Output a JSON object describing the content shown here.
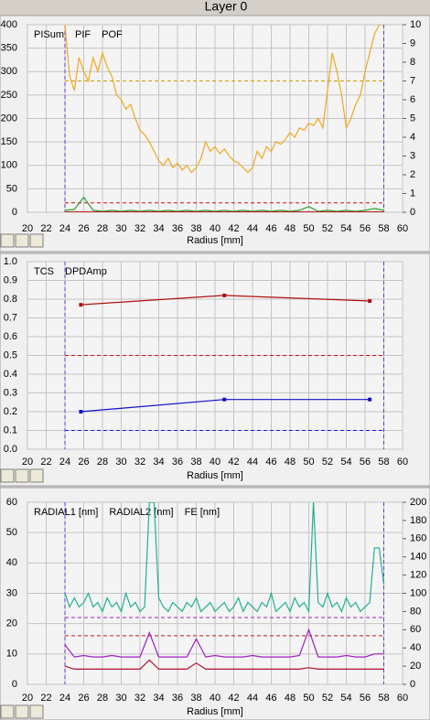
{
  "header": {
    "title": "Layer 0"
  },
  "chart_data": [
    {
      "type": "line",
      "xlabel": "Radius [mm]",
      "grid": true,
      "xlim": [
        20,
        60
      ],
      "xticks": [
        20,
        22,
        24,
        26,
        28,
        30,
        32,
        34,
        36,
        38,
        40,
        42,
        44,
        46,
        48,
        50,
        52,
        54,
        56,
        58,
        60
      ],
      "ylim": [
        0,
        400
      ],
      "yticks": [
        0,
        50,
        100,
        150,
        200,
        250,
        300,
        350,
        400
      ],
      "y2lim": [
        0,
        10
      ],
      "y2ticks": [
        0,
        1,
        2,
        3,
        4,
        5,
        6,
        7,
        8,
        9,
        10
      ],
      "xmarkers": [
        24,
        58
      ],
      "xmarker_color": "#5a3ce0",
      "reference_lines": [
        {
          "value": 280,
          "color": "#c8a000",
          "axis": "y"
        },
        {
          "value": 20,
          "color": "#d01010",
          "axis": "y"
        }
      ],
      "series": [
        {
          "name": "PISum",
          "color": "#f0a820",
          "axis": "y",
          "x": [
            24,
            24.5,
            25,
            25.5,
            26,
            26.5,
            27,
            27.5,
            28,
            28.5,
            29,
            29.5,
            30,
            30.5,
            31,
            31.5,
            32,
            32.5,
            33,
            33.5,
            34,
            34.5,
            35,
            35.5,
            36,
            36.5,
            37,
            37.5,
            38,
            38.5,
            39,
            39.5,
            40,
            40.5,
            41,
            41.5,
            42,
            42.5,
            43,
            43.5,
            44,
            44.5,
            45,
            45.5,
            46,
            46.5,
            47,
            47.5,
            48,
            48.5,
            49,
            49.5,
            50,
            50.5,
            51,
            51.5,
            52,
            52.5,
            53,
            53.5,
            54,
            54.5,
            55,
            55.5,
            56,
            56.5,
            57,
            57.5,
            58
          ],
          "values": [
            400,
            290,
            260,
            330,
            300,
            280,
            330,
            300,
            340,
            310,
            290,
            250,
            240,
            220,
            230,
            200,
            175,
            165,
            150,
            130,
            110,
            100,
            115,
            95,
            105,
            90,
            100,
            85,
            95,
            115,
            150,
            130,
            140,
            125,
            135,
            120,
            110,
            105,
            95,
            85,
            95,
            130,
            115,
            140,
            130,
            150,
            145,
            155,
            170,
            160,
            180,
            175,
            190,
            185,
            200,
            180,
            260,
            340,
            300,
            250,
            180,
            200,
            230,
            250,
            300,
            340,
            380,
            400,
            400
          ]
        },
        {
          "name": "PIF",
          "color": "#30a030",
          "axis": "y2",
          "x": [
            24,
            25,
            26,
            27,
            28,
            29,
            30,
            31,
            32,
            33,
            34,
            35,
            36,
            37,
            38,
            39,
            40,
            41,
            42,
            43,
            44,
            45,
            46,
            47,
            48,
            49,
            50,
            51,
            52,
            53,
            54,
            55,
            56,
            57,
            58
          ],
          "values": [
            0.1,
            0.15,
            0.8,
            0.1,
            0.05,
            0.1,
            0.05,
            0.1,
            0.05,
            0.1,
            0.05,
            0.1,
            0.05,
            0.1,
            0.05,
            0.1,
            0.05,
            0.1,
            0.05,
            0.1,
            0.05,
            0.1,
            0.05,
            0.1,
            0.05,
            0.1,
            0.3,
            0.05,
            0.1,
            0.05,
            0.1,
            0.05,
            0.1,
            0.2,
            0.1
          ]
        },
        {
          "name": "POF",
          "color": "#c02020",
          "axis": "y2",
          "x": [
            24,
            30,
            36,
            42,
            48,
            54,
            58
          ],
          "values": [
            0.02,
            0.02,
            0.02,
            0.02,
            0.02,
            0.02,
            0.02
          ]
        }
      ]
    },
    {
      "type": "line",
      "xlabel": "Radius [mm]",
      "grid": true,
      "markers": true,
      "xlim": [
        20,
        60
      ],
      "xticks": [
        20,
        22,
        24,
        26,
        28,
        30,
        32,
        34,
        36,
        38,
        40,
        42,
        44,
        46,
        48,
        50,
        52,
        54,
        56,
        58,
        60
      ],
      "ylim": [
        0,
        1
      ],
      "yticks": [
        {
          "value": 0,
          "label": "0.0"
        },
        0.1,
        0.2,
        0.3,
        0.4,
        0.5,
        0.6,
        0.7,
        0.8,
        0.9,
        {
          "value": 1,
          "label": "1.0"
        }
      ],
      "xmarkers": [
        24,
        58
      ],
      "xmarker_color": "#5a3ce0",
      "reference_lines": [
        {
          "value": 0.5,
          "color": "#c01818",
          "axis": "y"
        },
        {
          "value": 0.1,
          "color": "#1818d0",
          "axis": "y"
        }
      ],
      "series": [
        {
          "name": "TCS",
          "color": "#1010c8",
          "axis": "y",
          "x": [
            25.7,
            41,
            56.5
          ],
          "values": [
            0.2,
            0.265,
            0.265
          ]
        },
        {
          "name": "DPDAmp",
          "color": "#b01010",
          "axis": "y",
          "x": [
            25.7,
            41,
            56.5
          ],
          "values": [
            0.77,
            0.82,
            0.79
          ]
        }
      ]
    },
    {
      "type": "line",
      "xlabel": "Radius [mm]",
      "grid": true,
      "xlim": [
        20,
        60
      ],
      "xticks": [
        20,
        22,
        24,
        26,
        28,
        30,
        32,
        34,
        36,
        38,
        40,
        42,
        44,
        46,
        48,
        50,
        52,
        54,
        56,
        58,
        60
      ],
      "ylim": [
        0,
        60
      ],
      "yticks": [
        0,
        10,
        20,
        30,
        40,
        50,
        60
      ],
      "y2lim": [
        0,
        200
      ],
      "y2ticks": [
        0,
        20,
        40,
        60,
        80,
        100,
        120,
        140,
        160,
        180,
        200
      ],
      "xmarkers": [
        24,
        58
      ],
      "xmarker_color": "#5a3ce0",
      "reference_lines": [
        {
          "value": 22,
          "color": "#a020c0",
          "axis": "y"
        },
        {
          "value": 16,
          "color": "#c01818",
          "axis": "y"
        }
      ],
      "series": [
        {
          "name": "RADIAL1 [nm]",
          "color": "#a020c0",
          "axis": "y",
          "x": [
            24,
            25,
            26,
            27,
            28,
            29,
            30,
            31,
            32,
            33,
            34,
            35,
            36,
            37,
            38,
            39,
            40,
            41,
            42,
            43,
            44,
            45,
            46,
            47,
            48,
            49,
            50,
            51,
            52,
            53,
            54,
            55,
            56,
            57,
            58
          ],
          "values": [
            13,
            9,
            9.5,
            9,
            9,
            9.5,
            9,
            9,
            9,
            17,
            9,
            9,
            9,
            9,
            15,
            9,
            9.5,
            9,
            9,
            9,
            9.5,
            9,
            9,
            9,
            9,
            9.5,
            18,
            9,
            9,
            9,
            9.5,
            9,
            9,
            10,
            10
          ]
        },
        {
          "name": "RADIAL2 [nm]",
          "color": "#b01030",
          "axis": "y",
          "x": [
            24,
            25,
            26,
            27,
            28,
            29,
            30,
            31,
            32,
            33,
            34,
            35,
            36,
            37,
            38,
            39,
            40,
            41,
            42,
            43,
            44,
            45,
            46,
            47,
            48,
            49,
            50,
            51,
            52,
            53,
            54,
            55,
            56,
            57,
            58
          ],
          "values": [
            6,
            5,
            5,
            5,
            5,
            5,
            5,
            5,
            5,
            8,
            5,
            5,
            5,
            5,
            7,
            5,
            5,
            5,
            5,
            5,
            5,
            5,
            5,
            5,
            5,
            5,
            5.5,
            5,
            5,
            5,
            5,
            5,
            5,
            5,
            5
          ]
        },
        {
          "name": "FE [nm]",
          "color": "#20b090",
          "axis": "y2",
          "x": [
            24,
            24.5,
            25,
            25.5,
            26,
            26.5,
            27,
            27.5,
            28,
            28.5,
            29,
            29.5,
            30,
            30.5,
            31,
            31.5,
            32,
            32.5,
            33,
            33.5,
            34,
            34.5,
            35,
            35.5,
            36,
            36.5,
            37,
            37.5,
            38,
            38.5,
            39,
            39.5,
            40,
            40.5,
            41,
            41.5,
            42,
            42.5,
            43,
            43.5,
            44,
            44.5,
            45,
            45.5,
            46,
            46.5,
            47,
            47.5,
            48,
            48.5,
            49,
            49.5,
            50,
            50.5,
            51,
            51.5,
            52,
            52.5,
            53,
            53.5,
            54,
            54.5,
            55,
            55.5,
            56,
            56.5,
            57,
            57.5,
            58
          ],
          "values": [
            100,
            85,
            95,
            85,
            90,
            100,
            85,
            90,
            80,
            95,
            85,
            90,
            80,
            100,
            85,
            90,
            80,
            85,
            200,
            200,
            95,
            85,
            80,
            90,
            85,
            80,
            90,
            85,
            95,
            80,
            85,
            90,
            80,
            85,
            90,
            80,
            85,
            95,
            80,
            90,
            85,
            80,
            90,
            85,
            100,
            80,
            85,
            90,
            80,
            95,
            85,
            90,
            80,
            200,
            90,
            85,
            100,
            85,
            90,
            80,
            95,
            85,
            90,
            80,
            85,
            90,
            150,
            150,
            110
          ]
        }
      ]
    }
  ]
}
